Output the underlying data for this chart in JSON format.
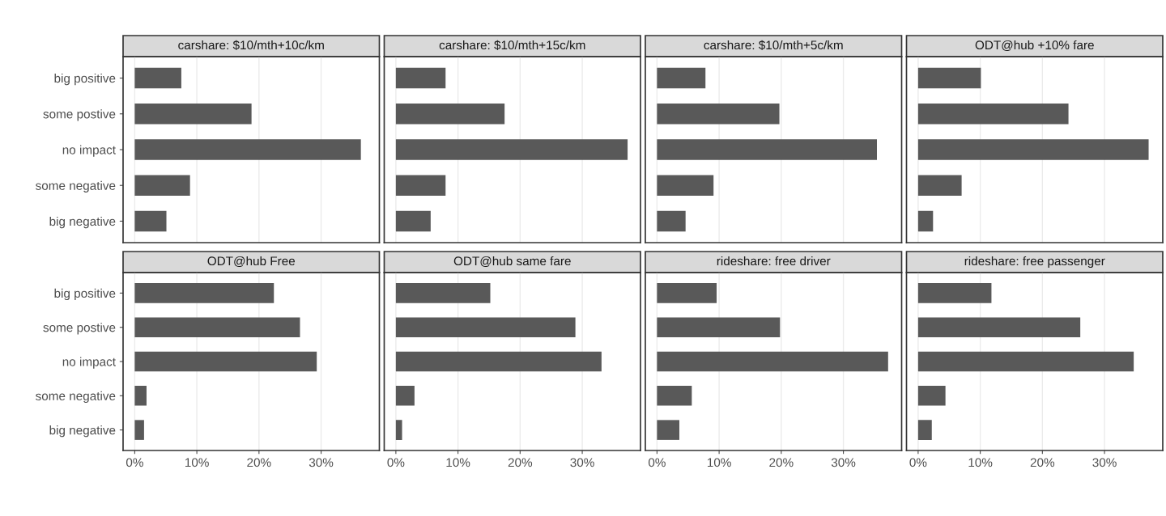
{
  "chart_data": [
    {
      "type": "bar",
      "orientation": "horizontal",
      "title": "carshare: $10/mth+10c/km",
      "categories": [
        "big positive",
        "some postive",
        "no impact",
        "some negative",
        "big negative"
      ],
      "values": [
        7.5,
        18.8,
        36.4,
        8.9,
        5.1
      ],
      "color": "#595959",
      "xlim": [
        -1.875,
        39.375
      ],
      "xticks": [
        {
          "value": 0,
          "label": null
        },
        {
          "value": 10,
          "label": null
        },
        {
          "value": 20,
          "label": null
        },
        {
          "value": 30,
          "label": null
        }
      ],
      "grid": "x",
      "tick_labels": "y"
    },
    {
      "type": "bar",
      "orientation": "horizontal",
      "title": "carshare: $10/mth+15c/km",
      "categories": [
        null,
        null,
        null,
        null,
        null
      ],
      "values": [
        8.0,
        17.5,
        37.3,
        8.0,
        5.6
      ],
      "color": "#595959",
      "xlim": [
        -1.875,
        39.375
      ],
      "xticks": [
        {
          "value": 0,
          "label": null
        },
        {
          "value": 10,
          "label": null
        },
        {
          "value": 20,
          "label": null
        },
        {
          "value": 30,
          "label": null
        }
      ],
      "grid": "x",
      "tick_labels": false
    },
    {
      "type": "bar",
      "orientation": "horizontal",
      "title": "carshare: $10/mth+5c/km",
      "categories": [
        null,
        null,
        null,
        null,
        null
      ],
      "values": [
        7.8,
        19.7,
        35.4,
        9.1,
        4.6
      ],
      "color": "#595959",
      "xlim": [
        -1.875,
        39.375
      ],
      "xticks": [
        {
          "value": 0,
          "label": null
        },
        {
          "value": 10,
          "label": null
        },
        {
          "value": 20,
          "label": null
        },
        {
          "value": 30,
          "label": null
        }
      ],
      "grid": "x",
      "tick_labels": false
    },
    {
      "type": "bar",
      "orientation": "horizontal",
      "title": "ODT@hub +10% fare",
      "categories": [
        null,
        null,
        null,
        null,
        null
      ],
      "values": [
        10.1,
        24.2,
        37.1,
        7.0,
        2.4
      ],
      "color": "#595959",
      "xlim": [
        -1.875,
        39.375
      ],
      "xticks": [
        {
          "value": 0,
          "label": null
        },
        {
          "value": 10,
          "label": null
        },
        {
          "value": 20,
          "label": null
        },
        {
          "value": 30,
          "label": null
        }
      ],
      "grid": "x",
      "tick_labels": false
    },
    {
      "type": "bar",
      "orientation": "horizontal",
      "title": "ODT@hub Free",
      "categories": [
        "big positive",
        "some postive",
        "no impact",
        "some negative",
        "big negative"
      ],
      "values": [
        22.4,
        26.6,
        29.3,
        1.9,
        1.5
      ],
      "color": "#595959",
      "xlim": [
        -1.875,
        39.375
      ],
      "xticks": [
        {
          "value": 0,
          "label": "0%"
        },
        {
          "value": 10,
          "label": "10%"
        },
        {
          "value": 20,
          "label": "20%"
        },
        {
          "value": 30,
          "label": "30%"
        }
      ],
      "grid": "x"
    },
    {
      "type": "bar",
      "orientation": "horizontal",
      "title": "ODT@hub same fare",
      "categories": [
        null,
        null,
        null,
        null,
        null
      ],
      "values": [
        15.2,
        28.9,
        33.1,
        3.0,
        1.0
      ],
      "color": "#595959",
      "xlim": [
        -1.875,
        39.375
      ],
      "xticks": [
        {
          "value": 0,
          "label": "0%"
        },
        {
          "value": 10,
          "label": "10%"
        },
        {
          "value": 20,
          "label": "20%"
        },
        {
          "value": 30,
          "label": "30%"
        }
      ],
      "grid": "x",
      "tick_labels": "x"
    },
    {
      "type": "bar",
      "orientation": "horizontal",
      "title": "rideshare: free driver",
      "categories": [
        null,
        null,
        null,
        null,
        null
      ],
      "values": [
        9.6,
        19.8,
        37.2,
        5.6,
        3.6
      ],
      "color": "#595959",
      "xlim": [
        -1.875,
        39.375
      ],
      "xticks": [
        {
          "value": 0,
          "label": "0%"
        },
        {
          "value": 10,
          "label": "10%"
        },
        {
          "value": 20,
          "label": "20%"
        },
        {
          "value": 30,
          "label": "30%"
        }
      ],
      "grid": "x",
      "tick_labels": "x"
    },
    {
      "type": "bar",
      "orientation": "horizontal",
      "title": "rideshare: free passenger",
      "categories": [
        null,
        null,
        null,
        null,
        null
      ],
      "values": [
        11.8,
        26.1,
        34.7,
        4.4,
        2.2
      ],
      "color": "#595959",
      "xlim": [
        -1.875,
        39.375
      ],
      "xticks": [
        {
          "value": 0,
          "label": "0%"
        },
        {
          "value": 10,
          "label": "10%"
        },
        {
          "value": 20,
          "label": "20%"
        },
        {
          "value": 30,
          "label": "30%"
        }
      ],
      "grid": "x",
      "tick_labels": "x"
    }
  ]
}
